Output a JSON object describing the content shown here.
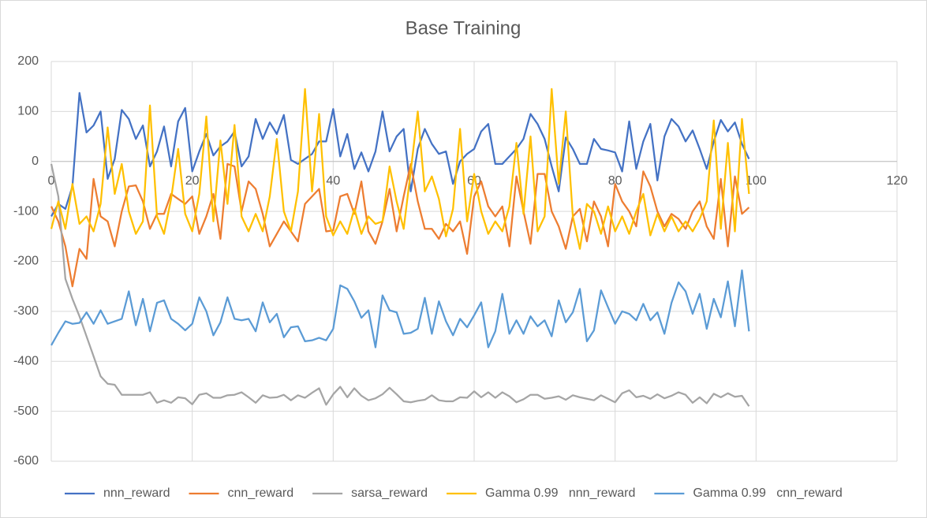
{
  "chart_data": {
    "type": "line",
    "title": "Base Training",
    "x": [
      0,
      1,
      2,
      3,
      4,
      5,
      6,
      7,
      8,
      9,
      10,
      11,
      12,
      13,
      14,
      15,
      16,
      17,
      18,
      19,
      20,
      21,
      22,
      23,
      24,
      25,
      26,
      27,
      28,
      29,
      30,
      31,
      32,
      33,
      34,
      35,
      36,
      37,
      38,
      39,
      40,
      41,
      42,
      43,
      44,
      45,
      46,
      47,
      48,
      49,
      50,
      51,
      52,
      53,
      54,
      55,
      56,
      57,
      58,
      59,
      60,
      61,
      62,
      63,
      64,
      65,
      66,
      67,
      68,
      69,
      70,
      71,
      72,
      73,
      74,
      75,
      76,
      77,
      78,
      79,
      80,
      81,
      82,
      83,
      84,
      85,
      86,
      87,
      88,
      89,
      90,
      91,
      92,
      93,
      94,
      95,
      96,
      97,
      98,
      99
    ],
    "series": [
      {
        "name": "nnn_reward",
        "color": "#4472c4",
        "values": [
          -110,
          -85,
          -95,
          -50,
          137,
          58,
          72,
          100,
          -35,
          5,
          103,
          85,
          45,
          72,
          -10,
          20,
          70,
          -10,
          80,
          107,
          -20,
          20,
          55,
          12,
          30,
          40,
          60,
          -10,
          10,
          85,
          45,
          78,
          55,
          93,
          3,
          -5,
          5,
          15,
          40,
          40,
          105,
          10,
          55,
          -15,
          18,
          -20,
          20,
          100,
          20,
          50,
          65,
          -60,
          25,
          65,
          35,
          15,
          20,
          -45,
          0,
          15,
          25,
          60,
          75,
          -5,
          -5,
          10,
          25,
          45,
          95,
          75,
          45,
          -10,
          -60,
          48,
          25,
          -5,
          -5,
          45,
          25,
          22,
          18,
          -20,
          80,
          -15,
          40,
          75,
          -38,
          50,
          85,
          70,
          40,
          62,
          25,
          -15,
          40,
          83,
          60,
          78,
          35,
          5
        ]
      },
      {
        "name": "cnn_reward",
        "color": "#ed7d31",
        "values": [
          -90,
          -120,
          -170,
          -250,
          -175,
          -195,
          -35,
          -110,
          -120,
          -170,
          -100,
          -50,
          -48,
          -80,
          -135,
          -105,
          -105,
          -65,
          -75,
          -85,
          -70,
          -145,
          -110,
          -65,
          -155,
          -5,
          -10,
          -100,
          -40,
          -55,
          -105,
          -170,
          -145,
          -120,
          -140,
          -160,
          -85,
          -70,
          -55,
          -140,
          -138,
          -70,
          -65,
          -105,
          -40,
          -140,
          -165,
          -120,
          -55,
          -140,
          -70,
          -5,
          -80,
          -135,
          -135,
          -155,
          -125,
          -140,
          -120,
          -185,
          -70,
          -40,
          -90,
          -110,
          -90,
          -170,
          -30,
          -100,
          -165,
          -25,
          -25,
          -100,
          -130,
          -175,
          -110,
          -95,
          -160,
          -80,
          -110,
          -170,
          -45,
          -80,
          -100,
          -130,
          -20,
          -50,
          -100,
          -130,
          -105,
          -115,
          -135,
          -100,
          -80,
          -130,
          -155,
          -35,
          -170,
          -30,
          -105,
          -92
        ]
      },
      {
        "name": "sarsa_reward",
        "color": "#a5a5a5",
        "values": [
          -5,
          -70,
          -235,
          -275,
          -310,
          -350,
          -390,
          -430,
          -445,
          -447,
          -467,
          -467,
          -467,
          -467,
          -462,
          -483,
          -478,
          -483,
          -472,
          -474,
          -486,
          -467,
          -464,
          -473,
          -473,
          -468,
          -467,
          -462,
          -472,
          -483,
          -468,
          -473,
          -472,
          -467,
          -478,
          -468,
          -473,
          -463,
          -454,
          -487,
          -466,
          -451,
          -472,
          -454,
          -469,
          -478,
          -474,
          -466,
          -453,
          -466,
          -480,
          -482,
          -479,
          -477,
          -468,
          -478,
          -480,
          -480,
          -472,
          -473,
          -460,
          -472,
          -462,
          -473,
          -462,
          -470,
          -482,
          -476,
          -467,
          -467,
          -475,
          -473,
          -470,
          -477,
          -468,
          -472,
          -475,
          -478,
          -468,
          -475,
          -482,
          -464,
          -458,
          -472,
          -469,
          -475,
          -466,
          -474,
          -469,
          -462,
          -467,
          -483,
          -472,
          -484,
          -465,
          -472,
          -464,
          -471,
          -469,
          -490
        ]
      },
      {
        "name": "Gamma 0.99   nnn_reward",
        "color": "#ffc000",
        "values": [
          -135,
          -80,
          -135,
          -45,
          -125,
          -110,
          -140,
          -85,
          68,
          -65,
          -5,
          -100,
          -145,
          -120,
          112,
          -110,
          -145,
          -75,
          25,
          -105,
          -140,
          -65,
          90,
          -120,
          42,
          -85,
          73,
          -110,
          -140,
          -105,
          -140,
          -70,
          45,
          -100,
          -140,
          -60,
          145,
          -60,
          95,
          -110,
          -148,
          -120,
          -145,
          -95,
          -145,
          -110,
          -125,
          -120,
          -10,
          -80,
          -135,
          -20,
          100,
          -60,
          -30,
          -75,
          -150,
          -95,
          65,
          -120,
          -25,
          -100,
          -145,
          -120,
          -140,
          -90,
          37,
          -105,
          50,
          -140,
          -110,
          145,
          -45,
          100,
          -110,
          -175,
          -85,
          -100,
          -145,
          -90,
          -140,
          -110,
          -145,
          -100,
          -65,
          -148,
          -105,
          -140,
          -110,
          -140,
          -120,
          -140,
          -115,
          -80,
          82,
          -135,
          37,
          -140,
          85,
          -65
        ]
      },
      {
        "name": "Gamma 0.99   cnn_reward",
        "color": "#5b9bd5",
        "values": [
          -368,
          -343,
          -320,
          -325,
          -323,
          -302,
          -325,
          -298,
          -325,
          -320,
          -315,
          -260,
          -328,
          -275,
          -340,
          -283,
          -278,
          -315,
          -325,
          -338,
          -325,
          -272,
          -300,
          -348,
          -322,
          -272,
          -315,
          -318,
          -315,
          -340,
          -282,
          -322,
          -305,
          -352,
          -332,
          -330,
          -360,
          -358,
          -353,
          -358,
          -335,
          -248,
          -255,
          -280,
          -313,
          -298,
          -372,
          -268,
          -298,
          -302,
          -345,
          -343,
          -335,
          -273,
          -345,
          -280,
          -320,
          -348,
          -315,
          -332,
          -308,
          -282,
          -372,
          -340,
          -265,
          -345,
          -318,
          -345,
          -310,
          -330,
          -318,
          -350,
          -278,
          -322,
          -302,
          -255,
          -360,
          -338,
          -258,
          -292,
          -325,
          -300,
          -305,
          -318,
          -285,
          -318,
          -302,
          -345,
          -283,
          -242,
          -260,
          -305,
          -265,
          -335,
          -275,
          -312,
          -240,
          -330,
          -218,
          -340
        ]
      }
    ],
    "xlim": [
      0,
      120
    ],
    "xticks": [
      0,
      20,
      40,
      60,
      80,
      100,
      120
    ],
    "ylim": [
      -600,
      200
    ],
    "yticks": [
      -600,
      -500,
      -400,
      -300,
      -200,
      -100,
      0,
      100,
      200
    ],
    "grid": true,
    "legend": "bottom"
  }
}
